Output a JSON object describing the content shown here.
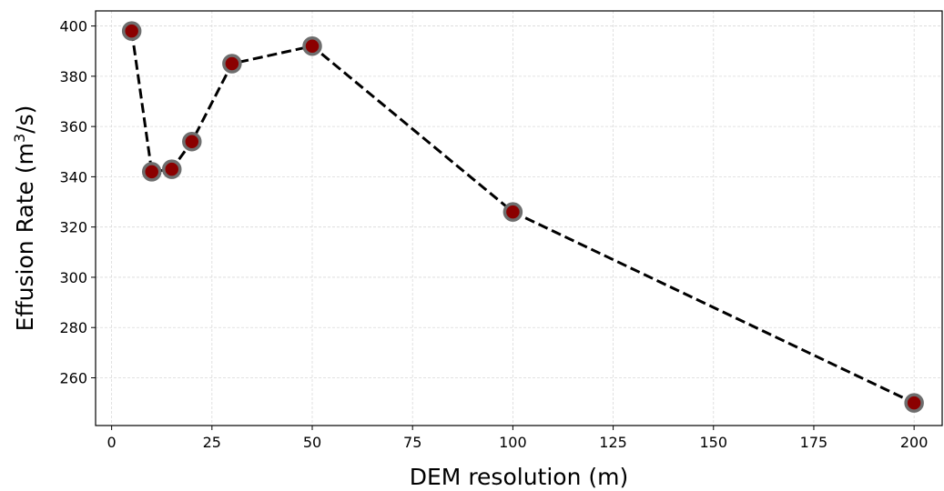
{
  "chart_data": {
    "type": "line",
    "xlabel": "DEM resolution (m)",
    "ylabel_main": "Effusion Rate (m",
    "ylabel_sup": "3",
    "ylabel_end": "/s)",
    "xlim": [
      -4,
      207
    ],
    "ylim": [
      241,
      406
    ],
    "xticks": [
      0,
      25,
      50,
      75,
      100,
      125,
      150,
      175,
      200
    ],
    "yticks": [
      260,
      280,
      300,
      320,
      340,
      360,
      380,
      400
    ],
    "grid": true,
    "series": [
      {
        "x": [
          5,
          10,
          15,
          20,
          30,
          50,
          100,
          200
        ],
        "y": [
          398,
          342,
          343,
          354,
          385,
          392,
          326,
          250
        ],
        "line_color": "#000000",
        "line_style": "dashed",
        "marker_fill": "#8b0000",
        "marker_edge": "#6e6e6e"
      }
    ]
  }
}
